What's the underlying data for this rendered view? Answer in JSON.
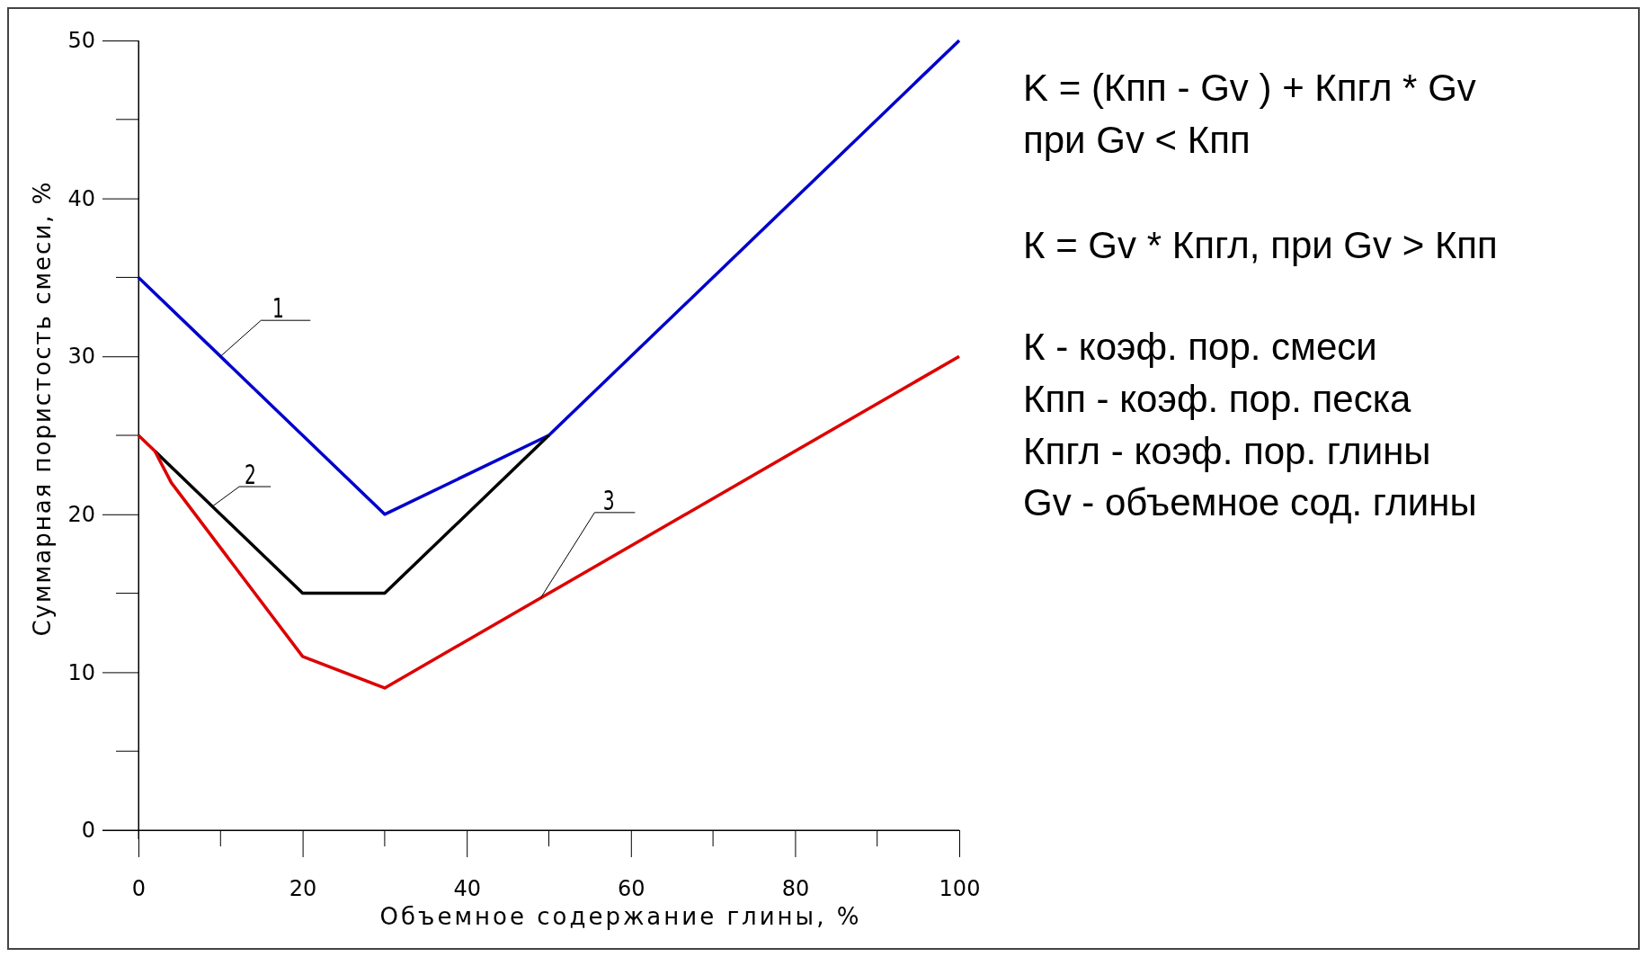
{
  "chart_data": {
    "type": "line",
    "xlabel": "Объемное содержание глины, %",
    "ylabel": "Суммарная пористость смеси, %",
    "xlim": [
      0,
      100
    ],
    "ylim": [
      0,
      50
    ],
    "xticks": [
      0,
      20,
      40,
      60,
      80,
      100
    ],
    "yticks": [
      0,
      10,
      20,
      30,
      40,
      50
    ],
    "grid": false,
    "legend": false,
    "marker": "none",
    "line_style": "solid",
    "series": [
      {
        "name": "1",
        "color": "#0000cc",
        "x": [
          0,
          30,
          50,
          100
        ],
        "values": [
          35,
          20,
          25,
          50
        ]
      },
      {
        "name": "2",
        "color": "#000000",
        "x": [
          2,
          20,
          30,
          50
        ],
        "values": [
          24,
          15,
          15,
          25
        ]
      },
      {
        "name": "3",
        "color": "#dd0000",
        "x": [
          0,
          2,
          4,
          20,
          30,
          100
        ],
        "values": [
          25,
          24,
          22,
          11,
          9,
          30
        ]
      }
    ],
    "annotations": [
      "K = (Кпп - Gv ) + Кпгл * Gv",
      "при Gv < Кпп",
      "К = Gv * Кпгл, при Gv > Кпп",
      "К - коэф. пор. смеси",
      "Кпп - коэф. пор. песка",
      "Кпгл - коэф. пор. глины",
      "Gv - объемное сод. глины"
    ]
  }
}
